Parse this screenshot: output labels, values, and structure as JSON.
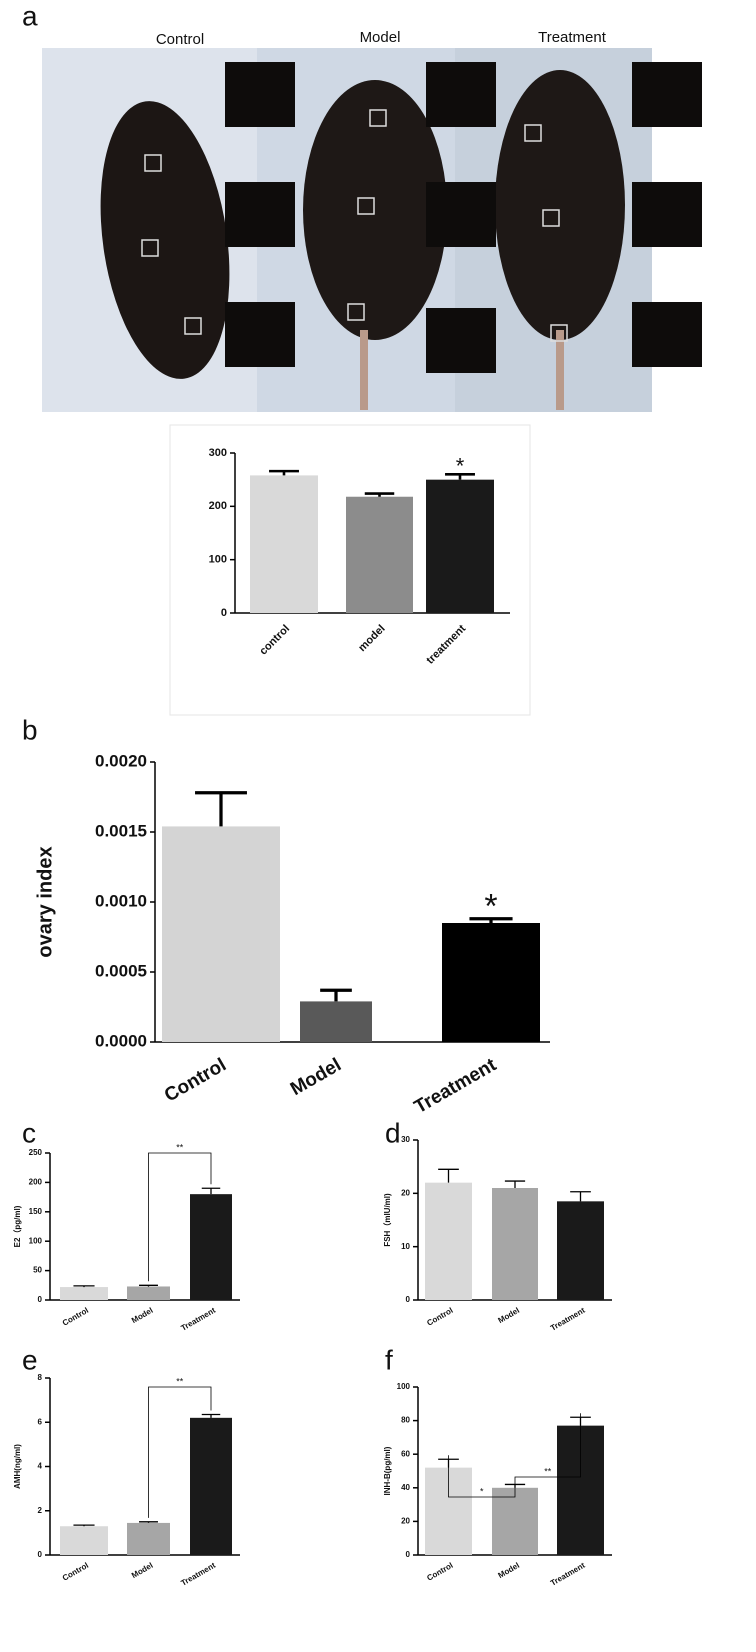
{
  "panels": [
    "a",
    "b",
    "c",
    "d",
    "e",
    "f"
  ],
  "photo": {
    "labels": [
      "Control",
      "Model",
      "Treatment"
    ]
  },
  "chart_data": [
    {
      "type": "bar",
      "categories": [
        "control",
        "model",
        "treatment"
      ],
      "values": [
        258,
        218,
        250
      ],
      "errors": [
        8,
        6,
        10
      ],
      "colors": [
        "#d9d9d9",
        "#8c8c8c",
        "#1a1a1a"
      ],
      "ylim": [
        0,
        300
      ],
      "yticks": [
        0,
        100,
        200,
        300
      ],
      "annotations": [
        "*"
      ]
    },
    {
      "type": "bar",
      "categories": [
        "Control",
        "Model",
        "Treatment"
      ],
      "values": [
        0.00154,
        0.00029,
        0.00085
      ],
      "errors": [
        0.00024,
        8e-05,
        3e-05
      ],
      "colors": [
        "#d4d4d4",
        "#595959",
        "#000000"
      ],
      "ylim": [
        0,
        0.002
      ],
      "yticks": [
        {
          "value": 0,
          "label": "0.0000"
        },
        {
          "value": 0.0005,
          "label": "0.0005"
        },
        {
          "value": 0.001,
          "label": "0.0010"
        },
        {
          "value": 0.0015,
          "label": "0.0015"
        },
        {
          "value": 0.002,
          "label": "0.0020"
        }
      ],
      "ylabel": "ovary index",
      "annotations": [
        "*"
      ]
    },
    {
      "type": "bar",
      "categories": [
        "Control",
        "Model",
        "Treatment"
      ],
      "values": [
        22,
        23,
        180
      ],
      "errors": [
        2,
        2,
        10
      ],
      "colors": [
        "#d9d9d9",
        "#a6a6a6",
        "#1a1a1a"
      ],
      "ylim": [
        0,
        250
      ],
      "yticks": [
        0,
        50,
        100,
        150,
        200,
        250
      ],
      "ylabel": "E2（pg/ml)",
      "annotations": [
        "**"
      ]
    },
    {
      "type": "bar",
      "categories": [
        "Control",
        "Model",
        "Treatment"
      ],
      "values": [
        22,
        21,
        18.5
      ],
      "errors": [
        2.5,
        1.3,
        1.8
      ],
      "colors": [
        "#d9d9d9",
        "#a6a6a6",
        "#1a1a1a"
      ],
      "ylim": [
        0,
        30
      ],
      "yticks": [
        0,
        10,
        20,
        30
      ],
      "ylabel": "FSH（mIU/ml)",
      "annotations": []
    },
    {
      "type": "bar",
      "categories": [
        "Control",
        "Model",
        "Treatment"
      ],
      "values": [
        1.3,
        1.45,
        6.2
      ],
      "errors": [
        0.05,
        0.05,
        0.15
      ],
      "colors": [
        "#d9d9d9",
        "#a6a6a6",
        "#1a1a1a"
      ],
      "ylim": [
        0,
        8
      ],
      "yticks": [
        0,
        2,
        4,
        6,
        8
      ],
      "ylabel": "AMH(ng/ml)",
      "annotations": [
        "**"
      ]
    },
    {
      "type": "bar",
      "categories": [
        "Control",
        "Model",
        "Treatment"
      ],
      "values": [
        52,
        40,
        77
      ],
      "errors": [
        5,
        2,
        5
      ],
      "colors": [
        "#d9d9d9",
        "#a6a6a6",
        "#1a1a1a"
      ],
      "ylim": [
        0,
        100
      ],
      "yticks": [
        0,
        20,
        40,
        60,
        80,
        100
      ],
      "ylabel": "INH-B(pg/ml)",
      "annotations": [
        "*",
        "**"
      ]
    }
  ]
}
